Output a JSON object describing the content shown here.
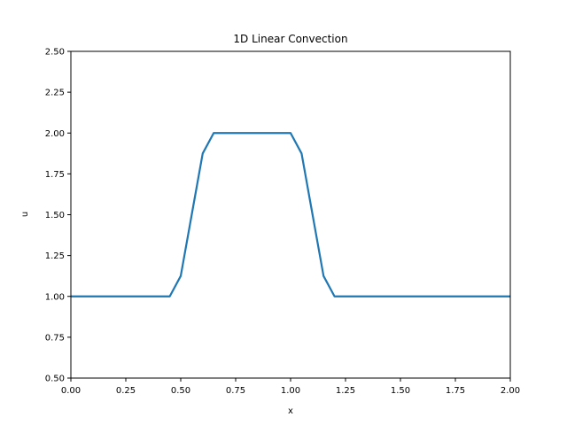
{
  "chart_data": {
    "type": "line",
    "title": "1D Linear Convection",
    "xlabel": "x",
    "ylabel": "u",
    "xlim": [
      0,
      2
    ],
    "ylim": [
      0.5,
      2.5
    ],
    "grid": false,
    "xticks": [
      "0.00",
      "0.25",
      "0.50",
      "0.75",
      "1.00",
      "1.25",
      "1.50",
      "1.75",
      "2.00"
    ],
    "yticks": [
      "0.50",
      "0.75",
      "1.00",
      "1.25",
      "1.50",
      "1.75",
      "2.00",
      "2.25",
      "2.50"
    ],
    "line_color": "#1f77b4",
    "series": [
      {
        "x": [
          0.0,
          0.05,
          0.1,
          0.15,
          0.2,
          0.25,
          0.3,
          0.35,
          0.4,
          0.45,
          0.5,
          0.55,
          0.6,
          0.65,
          0.7,
          0.75,
          0.8,
          0.85,
          0.9,
          0.95,
          1.0,
          1.05,
          1.1,
          1.15,
          1.2,
          1.25,
          1.3,
          1.35,
          1.4,
          1.45,
          1.5,
          1.55,
          1.6,
          1.65,
          1.7,
          1.75,
          1.8,
          1.85,
          1.9,
          1.95,
          2.0
        ],
        "values": [
          1.0,
          1.0,
          1.0,
          1.0,
          1.0,
          1.0,
          1.0,
          1.0,
          1.0,
          1.0,
          1.125,
          1.5,
          1.875,
          2.0,
          2.0,
          2.0,
          2.0,
          2.0,
          2.0,
          2.0,
          2.0,
          1.875,
          1.5,
          1.125,
          1.0,
          1.0,
          1.0,
          1.0,
          1.0,
          1.0,
          1.0,
          1.0,
          1.0,
          1.0,
          1.0,
          1.0,
          1.0,
          1.0,
          1.0,
          1.0,
          1.0
        ]
      }
    ]
  }
}
